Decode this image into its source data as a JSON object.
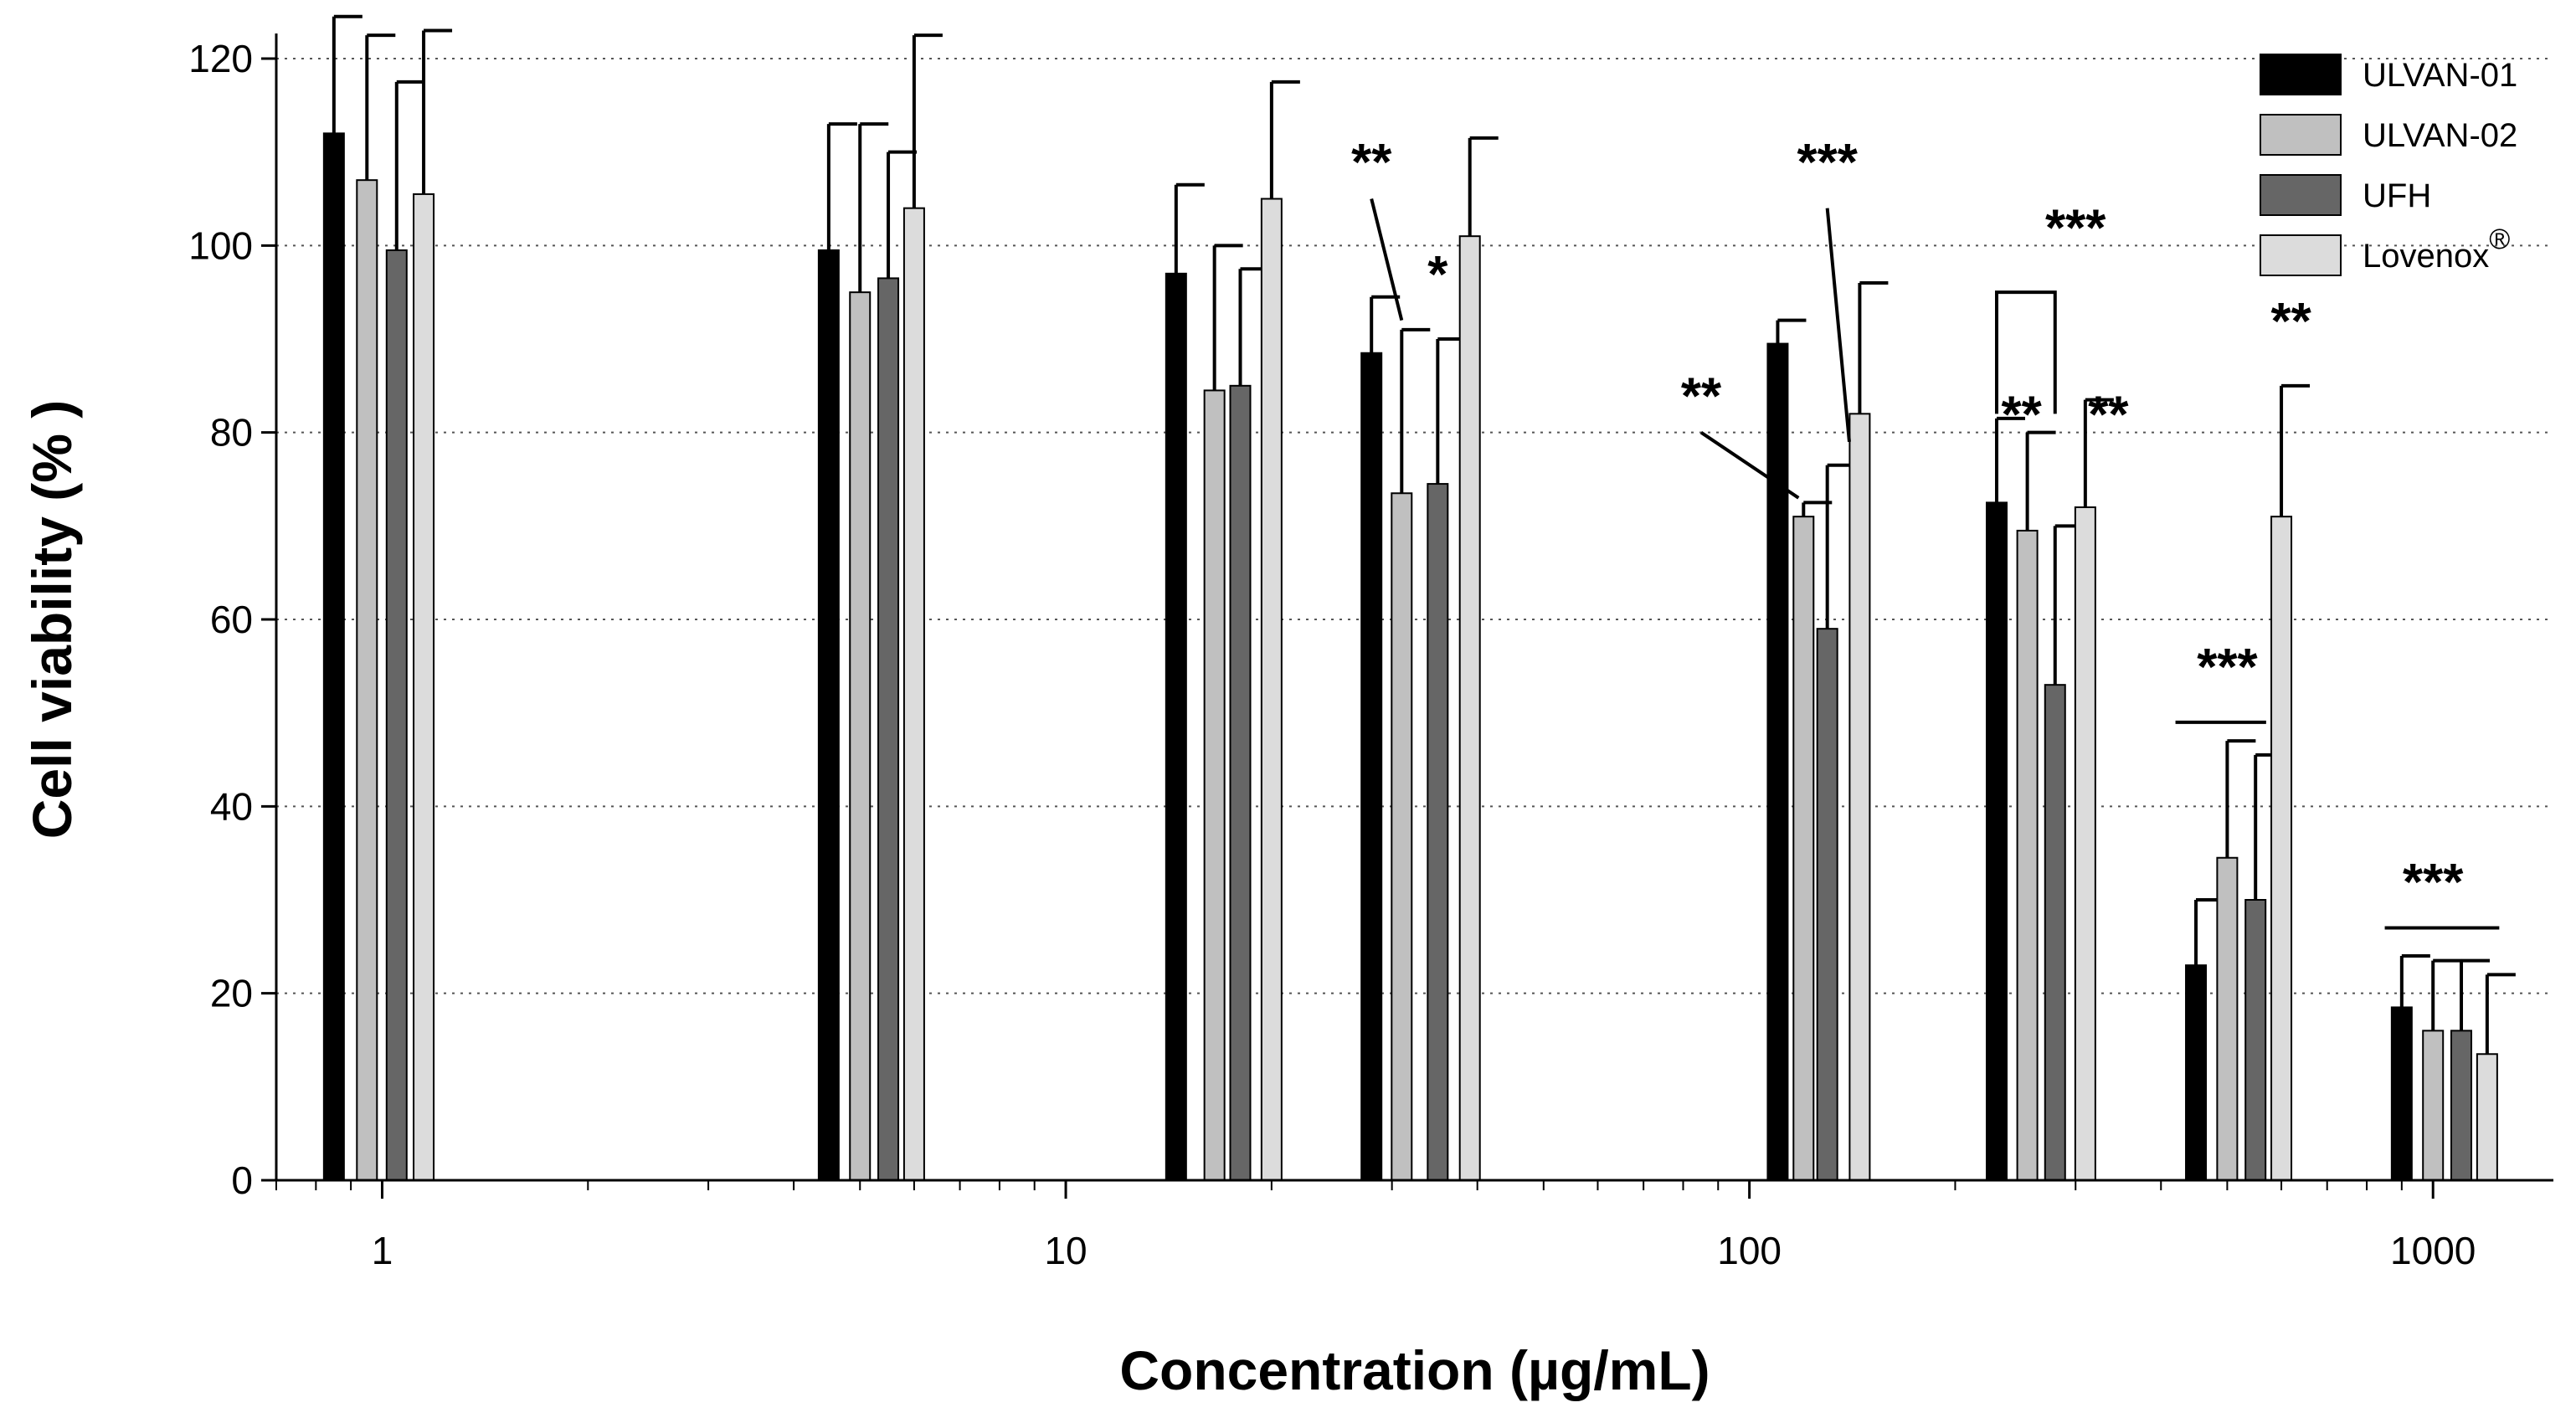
{
  "chart_data": {
    "type": "bar",
    "title": "",
    "xlabel": "Concentration (µg/mL)",
    "ylabel": "Cell viability (% )",
    "xscale": "log",
    "xlim": [
      0.7,
      1500
    ],
    "ylim": [
      0,
      120
    ],
    "yticks": [
      0,
      20,
      40,
      60,
      80,
      100,
      120
    ],
    "xticks": [
      1,
      10,
      100,
      1000
    ],
    "xtick_labels": [
      "1",
      "10",
      "100",
      "1000"
    ],
    "grid": "horizontal dotted",
    "legend_position": "top-right",
    "series": [
      {
        "name": "ULVAN-01",
        "label_suffix": "",
        "color": "#000000",
        "x": [
          0.85,
          4.5,
          14.5,
          28,
          110,
          230,
          450,
          900
        ],
        "values": [
          112,
          99.5,
          97,
          88.5,
          89.5,
          72.5,
          23,
          18.5
        ],
        "errors": [
          12.5,
          13.5,
          9.5,
          6,
          2.5,
          9,
          7,
          5.5
        ]
      },
      {
        "name": "ULVAN-02",
        "label_suffix": "",
        "color": "#c0c0c0",
        "x": [
          0.95,
          5.0,
          16.5,
          31,
          120,
          255,
          500,
          1000
        ],
        "values": [
          107,
          95,
          84.5,
          73.5,
          71,
          69.5,
          34.5,
          16
        ],
        "errors": [
          15.5,
          18,
          15.5,
          17.5,
          1.5,
          10.5,
          12.5,
          7.5
        ]
      },
      {
        "name": "UFH",
        "label_suffix": "",
        "color": "#666666",
        "x": [
          1.05,
          5.5,
          18,
          35,
          130,
          280,
          550,
          1100
        ],
        "values": [
          99.5,
          96.5,
          85,
          74.5,
          59,
          53,
          30,
          16
        ],
        "errors": [
          18,
          13.5,
          12.5,
          15.5,
          17.5,
          17,
          15.5,
          7.5
        ]
      },
      {
        "name": "Lovenox",
        "label_suffix": "®",
        "color": "#dcdcdc",
        "x": [
          1.15,
          6.0,
          20,
          39,
          145,
          310,
          600,
          1200
        ],
        "values": [
          105.5,
          104,
          105,
          101,
          82,
          72,
          71,
          13.5
        ],
        "errors": [
          17.5,
          18.5,
          12.5,
          10.5,
          14,
          11.5,
          14,
          8.5
        ]
      }
    ],
    "annotations": [
      {
        "text": "**",
        "x": 28,
        "y": 107,
        "line": [
          [
            28,
            105
          ],
          [
            31,
            92
          ]
        ]
      },
      {
        "text": "*",
        "x": 35,
        "y": 95
      },
      {
        "text": "***",
        "x": 130,
        "y": 107,
        "line": [
          [
            130,
            104
          ],
          [
            140,
            79
          ]
        ]
      },
      {
        "text": "**",
        "x": 85,
        "y": 82,
        "line": [
          [
            85,
            80
          ],
          [
            118,
            73
          ]
        ]
      },
      {
        "text": "***",
        "x": 300,
        "y": 100,
        "bracket": [
          230,
          280,
          95,
          82
        ]
      },
      {
        "text": "**",
        "x": 250,
        "y": 80
      },
      {
        "text": "**",
        "x": 335,
        "y": 80
      },
      {
        "text": "***",
        "x": 500,
        "y": 53,
        "hline": [
          420,
          570,
          49
        ]
      },
      {
        "text": "**",
        "x": 620,
        "y": 90
      },
      {
        "text": "***",
        "x": 1000,
        "y": 30,
        "hline": [
          850,
          1250,
          27
        ]
      }
    ]
  }
}
